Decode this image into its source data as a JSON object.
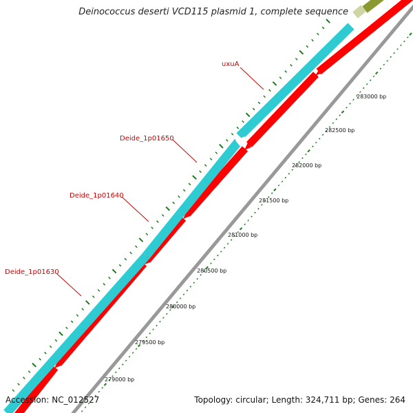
{
  "title": "Deinococcus deserti VCD115 plasmid 1, complete sequence",
  "footer": {
    "accession": "Accession: NC_012527",
    "stats": "Topology: circular; Length: 324,711 bp; Genes: 264"
  },
  "gene_labels": [
    "uxuA",
    "Deide_1p01650",
    "Deide_1p01640",
    "Deide_1p01630"
  ],
  "ruler_labels": [
    "283000 bp",
    "282500 bp",
    "282000 bp",
    "281500 bp",
    "281000 bp",
    "280500 bp",
    "280000 bp",
    "279500 bp",
    "279000 bp"
  ],
  "colors": {
    "forward_track": "#2ecbd3",
    "reverse_track": "#ff0000",
    "backbone": "#999999",
    "ticks": "#1a7a1a",
    "labels": "#cc0000",
    "top_feature": "#8a9a30"
  }
}
